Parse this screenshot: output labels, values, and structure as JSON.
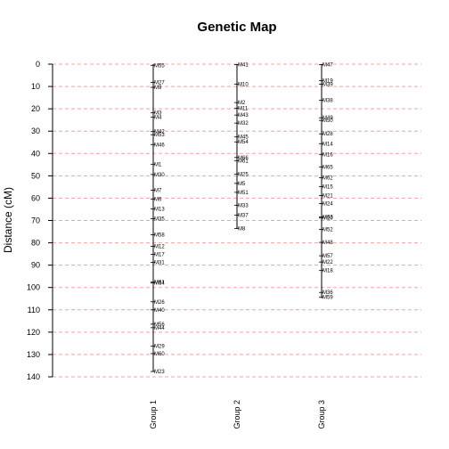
{
  "chart_data": {
    "type": "genetic-map",
    "title": "Genetic Map",
    "ylabel": "Distance (cM)",
    "ylim": [
      0,
      140
    ],
    "y_ticks": [
      0,
      10,
      20,
      30,
      40,
      50,
      60,
      70,
      80,
      90,
      100,
      110,
      120,
      130,
      140
    ],
    "y_tick_labels": [
      "0",
      "10",
      "20",
      "30",
      "40",
      "50",
      "60",
      "70",
      "80",
      "90",
      "100",
      "110",
      "120",
      "130",
      "140"
    ],
    "grid": true,
    "y_reversed": true,
    "groups": [
      {
        "name": "Group 1",
        "length": 137.8,
        "markers": [
          {
            "name": "M55",
            "pos": 0.5
          },
          {
            "name": "M27",
            "pos": 8.2
          },
          {
            "name": "M9",
            "pos": 10.4
          },
          {
            "name": "M3",
            "pos": 21.8
          },
          {
            "name": "M4",
            "pos": 23.8
          },
          {
            "name": "M42",
            "pos": 30.2
          },
          {
            "name": "M53",
            "pos": 31.6
          },
          {
            "name": "M46",
            "pos": 36.0
          },
          {
            "name": "M1",
            "pos": 44.8
          },
          {
            "name": "M30",
            "pos": 49.4
          },
          {
            "name": "M7",
            "pos": 56.4
          },
          {
            "name": "M6",
            "pos": 60.4
          },
          {
            "name": "M13",
            "pos": 64.8
          },
          {
            "name": "M35",
            "pos": 69.2
          },
          {
            "name": "M58",
            "pos": 76.4
          },
          {
            "name": "M12",
            "pos": 81.6
          },
          {
            "name": "M17",
            "pos": 85.2
          },
          {
            "name": "M31",
            "pos": 88.8
          },
          {
            "name": "M61",
            "pos": 97.6
          },
          {
            "name": "M64",
            "pos": 98.0
          },
          {
            "name": "M26",
            "pos": 106.4
          },
          {
            "name": "M40",
            "pos": 110.0
          },
          {
            "name": "M56",
            "pos": 116.4
          },
          {
            "name": "M44",
            "pos": 118.0
          },
          {
            "name": "M29",
            "pos": 126.2
          },
          {
            "name": "M60",
            "pos": 129.6
          },
          {
            "name": "M23",
            "pos": 137.6
          }
        ]
      },
      {
        "name": "Group 2",
        "length": 73.6,
        "markers": [
          {
            "name": "M41",
            "pos": 0.2
          },
          {
            "name": "M10",
            "pos": 9.0
          },
          {
            "name": "M2",
            "pos": 17.2
          },
          {
            "name": "M11",
            "pos": 19.8
          },
          {
            "name": "M43",
            "pos": 22.8
          },
          {
            "name": "M32",
            "pos": 26.4
          },
          {
            "name": "M45",
            "pos": 32.6
          },
          {
            "name": "M54",
            "pos": 34.8
          },
          {
            "name": "M66",
            "pos": 41.8
          },
          {
            "name": "M61",
            "pos": 43.2
          },
          {
            "name": "M25",
            "pos": 49.2
          },
          {
            "name": "M5",
            "pos": 53.4
          },
          {
            "name": "M51",
            "pos": 57.4
          },
          {
            "name": "M33",
            "pos": 63.2
          },
          {
            "name": "M37",
            "pos": 67.6
          },
          {
            "name": "M8",
            "pos": 73.6
          }
        ]
      },
      {
        "name": "Group 3",
        "length": 104.8,
        "markers": [
          {
            "name": "M47",
            "pos": 0.2
          },
          {
            "name": "M19",
            "pos": 7.4
          },
          {
            "name": "M39",
            "pos": 9.0
          },
          {
            "name": "M38",
            "pos": 16.2
          },
          {
            "name": "M49",
            "pos": 24.0
          },
          {
            "name": "M50",
            "pos": 25.2
          },
          {
            "name": "M28",
            "pos": 31.2
          },
          {
            "name": "M14",
            "pos": 35.6
          },
          {
            "name": "M16",
            "pos": 40.4
          },
          {
            "name": "M65",
            "pos": 46.0
          },
          {
            "name": "M62",
            "pos": 50.8
          },
          {
            "name": "M15",
            "pos": 54.8
          },
          {
            "name": "M21",
            "pos": 58.8
          },
          {
            "name": "M24",
            "pos": 62.4
          },
          {
            "name": "M63",
            "pos": 68.4
          },
          {
            "name": "M20",
            "pos": 68.9
          },
          {
            "name": "M52",
            "pos": 74.0
          },
          {
            "name": "M48",
            "pos": 79.8
          },
          {
            "name": "M57",
            "pos": 85.8
          },
          {
            "name": "M22",
            "pos": 88.6
          },
          {
            "name": "M18",
            "pos": 92.4
          },
          {
            "name": "M36",
            "pos": 102.2
          },
          {
            "name": "M59",
            "pos": 104.4
          }
        ]
      }
    ]
  }
}
